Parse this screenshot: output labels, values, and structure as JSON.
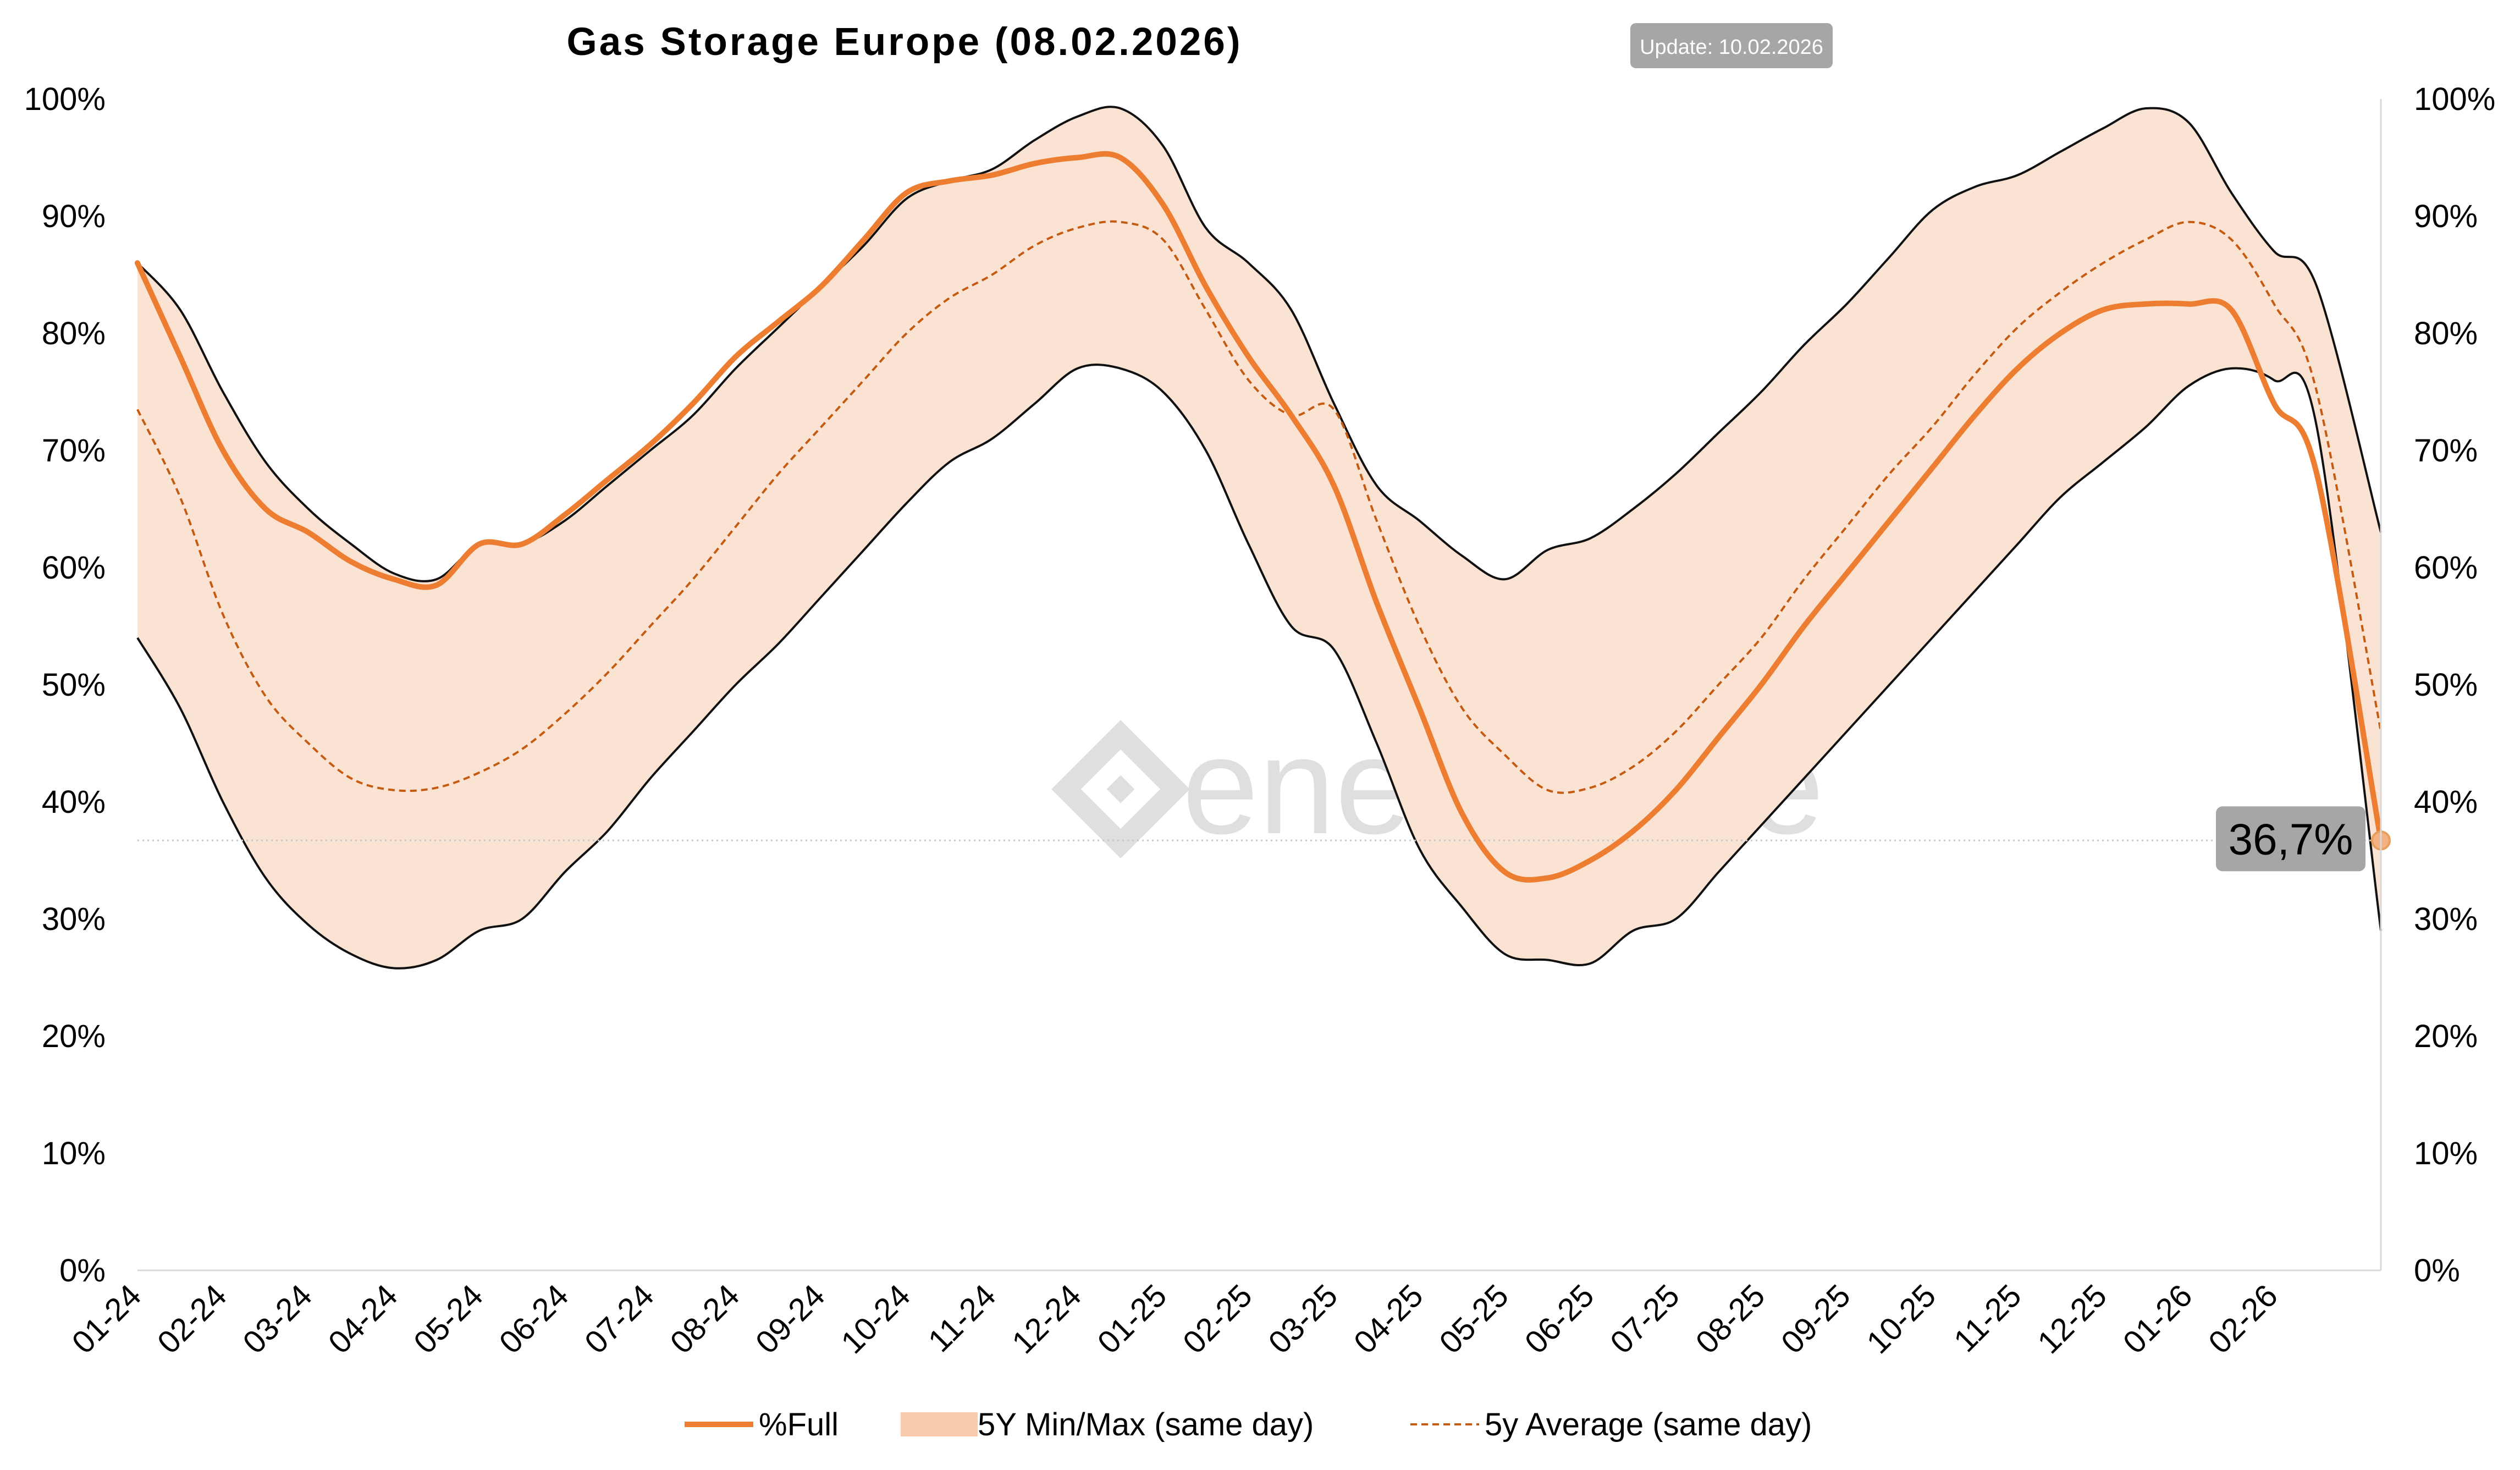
{
  "chart_data": {
    "type": "line",
    "title": "Gas Storage Europe (08.02.2026)",
    "update_badge": "Update: 10.02.2026",
    "watermark": "enerchase",
    "xlabel": "",
    "ylabel": "",
    "ylim": [
      0,
      100
    ],
    "y_ticks": [
      "0%",
      "10%",
      "20%",
      "30%",
      "40%",
      "50%",
      "60%",
      "70%",
      "80%",
      "90%",
      "100%"
    ],
    "x_ticks": [
      "01-24",
      "02-24",
      "03-24",
      "04-24",
      "05-24",
      "06-24",
      "07-24",
      "08-24",
      "09-24",
      "10-24",
      "11-24",
      "12-24",
      "01-25",
      "02-25",
      "03-25",
      "04-25",
      "05-25",
      "06-25",
      "07-25",
      "08-25",
      "09-25",
      "10-25",
      "11-25",
      "12-25",
      "01-26",
      "02-26"
    ],
    "x_month_index": [
      0,
      0.5,
      1,
      1.5,
      2,
      2.5,
      3,
      3.5,
      4,
      4.5,
      5,
      5.5,
      6,
      6.5,
      7,
      7.5,
      8,
      8.5,
      9,
      9.5,
      10,
      10.5,
      11,
      11.5,
      12,
      12.5,
      13,
      13.5,
      14,
      14.5,
      15,
      15.5,
      16,
      16.5,
      17,
      17.5,
      18,
      18.5,
      19,
      19.5,
      20,
      20.5,
      21,
      21.5,
      22,
      22.5,
      23,
      23.5,
      24,
      24.5,
      25,
      25.5,
      26.25
    ],
    "series": [
      {
        "name": "5Y Max (same day)",
        "values": [
          86,
          82,
          75,
          69,
          65,
          62,
          59.5,
          59,
          62,
          62,
          64,
          67,
          70,
          73,
          77,
          80.5,
          84,
          87.5,
          91.5,
          93,
          94,
          96.5,
          98.5,
          99.2,
          96,
          89,
          86,
          82,
          74,
          67,
          64,
          61,
          59,
          61.5,
          62.5,
          65,
          68,
          71.5,
          75,
          79,
          82.5,
          86.5,
          90.5,
          92.5,
          93.5,
          95.5,
          97.5,
          99.2,
          98,
          92,
          87,
          84,
          63
        ]
      },
      {
        "name": "5Y Min (same day)",
        "values": [
          54,
          48,
          40,
          33.5,
          29.5,
          27,
          25.8,
          26.5,
          29,
          30,
          34,
          37.5,
          42,
          46,
          50,
          53.5,
          57.5,
          61.5,
          65.5,
          69,
          71,
          74,
          77,
          77,
          75,
          70,
          62,
          55,
          53,
          45,
          36,
          31,
          27,
          26.5,
          26.2,
          29,
          30,
          34,
          38,
          42,
          46,
          50,
          54,
          58,
          62,
          66,
          69,
          72,
          75.5,
          77,
          76,
          72,
          29
        ]
      },
      {
        "name": "5y Average (same day)",
        "values": [
          73.5,
          66,
          56,
          49,
          45,
          42,
          41,
          41.2,
          42.5,
          44.5,
          47.5,
          51,
          55,
          59,
          63.5,
          68,
          72,
          76,
          80,
          83,
          85,
          87.5,
          89,
          89.5,
          88,
          82,
          76,
          73,
          73.5,
          64,
          55,
          48,
          44,
          41,
          41.2,
          43,
          46,
          50,
          54,
          59,
          63.5,
          68,
          72,
          76.5,
          80.5,
          83.5,
          86,
          88,
          89.5,
          88,
          82.5,
          75,
          46
        ]
      },
      {
        "name": "%Full",
        "values": [
          86,
          78,
          70,
          65,
          63,
          60.5,
          59,
          58.5,
          62,
          62,
          64.5,
          67.5,
          70.5,
          74,
          78,
          81,
          84,
          88,
          92,
          93,
          93.5,
          94.5,
          95,
          95,
          91,
          84,
          78,
          73,
          67,
          57,
          48,
          39,
          34,
          33.5,
          35,
          37.5,
          41,
          45.5,
          50,
          55,
          59.5,
          64,
          68.5,
          73,
          77,
          80,
          82,
          82.5,
          82.5,
          82,
          74,
          68,
          36.7
        ]
      }
    ],
    "current_value": 36.7,
    "current_value_label": "36,7%",
    "legend": [
      {
        "label": "%Full",
        "style": "line",
        "color": "#ed7d31"
      },
      {
        "label": "5Y Min/Max (same day)",
        "style": "band",
        "color": "#f8cbad"
      },
      {
        "label": "5y Average (same day)",
        "style": "dashed",
        "color": "#c55a11"
      }
    ],
    "colors": {
      "full": "#ed7d31",
      "band_fill": "#fbe3d4",
      "band_edge": "#111111",
      "average": "#c55a11",
      "badge_bg": "#a6a6a6",
      "callout_bg": "#a6a6a6",
      "watermark": "#dcdcdc"
    }
  }
}
